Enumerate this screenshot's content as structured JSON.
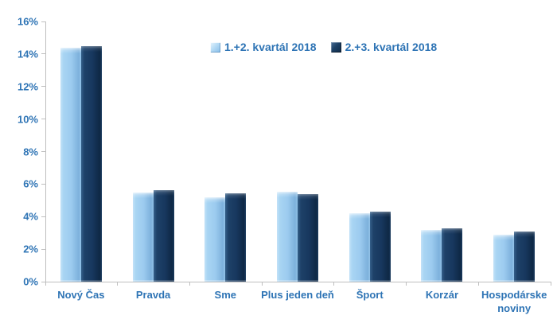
{
  "chart_data": {
    "type": "bar",
    "title": "",
    "categories": [
      "Nový Čas",
      "Pravda",
      "Sme",
      "Plus jeden deň",
      "Šport",
      "Korzár",
      "Hospodárske noviny"
    ],
    "series": [
      {
        "name": "1.+2. kvartál 2018",
        "color": "#9CCBEF",
        "values": [
          14.4,
          5.5,
          5.2,
          5.55,
          4.2,
          3.2,
          2.9
        ]
      },
      {
        "name": "2.+3. kvartál 2018",
        "color": "#17375E",
        "values": [
          14.5,
          5.65,
          5.45,
          5.4,
          4.3,
          3.3,
          3.1
        ]
      }
    ],
    "yticks": [
      "0%",
      "2%",
      "4%",
      "6%",
      "8%",
      "10%",
      "12%",
      "14%",
      "16%"
    ],
    "ylim": [
      0,
      16
    ],
    "ytick_step": 2,
    "xlabel": "",
    "ylabel": "",
    "grid": false,
    "legend_position": "top-center",
    "text_color": "#2E74B5",
    "axis_color": "#BFBFBF",
    "background_color": "#FFFFFF"
  }
}
